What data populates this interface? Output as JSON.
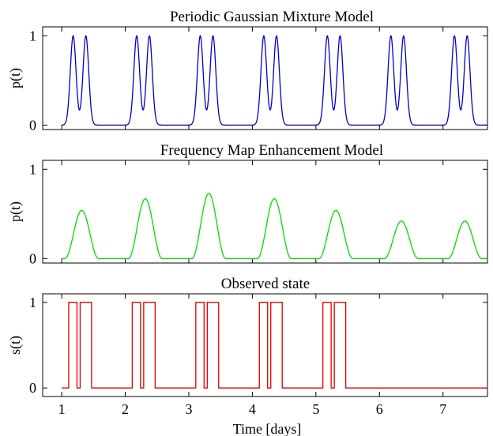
{
  "xlabel": "Time [days]",
  "xticks": [
    1,
    2,
    3,
    4,
    5,
    6,
    7
  ],
  "xlim": [
    0.7,
    7.7
  ],
  "chart_data": [
    {
      "type": "line",
      "title": "Periodic Gaussian Mixture Model",
      "ylabel": "p(t)",
      "ylim": [
        -0.05,
        1.1
      ],
      "yticks": [
        0,
        1
      ],
      "color": "#0000cc",
      "model": "periodic_gaussian_mixture",
      "peaks_per_day": [
        {
          "center": 0.18,
          "width": 0.045,
          "height": 1.0
        },
        {
          "center": 0.38,
          "width": 0.045,
          "height": 1.0
        }
      ],
      "days": [
        1,
        2,
        3,
        4,
        5,
        6,
        7
      ],
      "xlabel": ""
    },
    {
      "type": "line",
      "title": "Frequency Map Enhancement Model",
      "ylabel": "p(t)",
      "ylim": [
        -0.05,
        1.1
      ],
      "yticks": [
        0,
        1
      ],
      "color": "#00dd00",
      "model": "frequency_map",
      "daily_peak_times": [
        1.3,
        2.3,
        3.3,
        4.33,
        5.3,
        6.33,
        7.33
      ],
      "daily_peak_values": [
        0.54,
        0.67,
        0.73,
        0.67,
        0.54,
        0.42,
        0.42
      ],
      "zero_before_offset": 0.25,
      "zero_after_offset": 0.28,
      "xlabel": ""
    },
    {
      "type": "line",
      "title": "Observed state",
      "ylabel": "s(t)",
      "ylim": [
        -0.1,
        1.1
      ],
      "yticks": [
        0,
        1
      ],
      "color": "#dd0000",
      "model": "step",
      "on_intervals": [
        [
          1.11,
          1.24
        ],
        [
          1.29,
          1.47
        ],
        [
          2.11,
          2.24
        ],
        [
          2.29,
          2.47
        ],
        [
          3.11,
          3.24
        ],
        [
          3.29,
          3.47
        ],
        [
          4.11,
          4.24
        ],
        [
          4.29,
          4.47
        ],
        [
          5.11,
          5.24
        ],
        [
          5.29,
          5.47
        ]
      ],
      "xlabel": "Time [days]"
    }
  ]
}
